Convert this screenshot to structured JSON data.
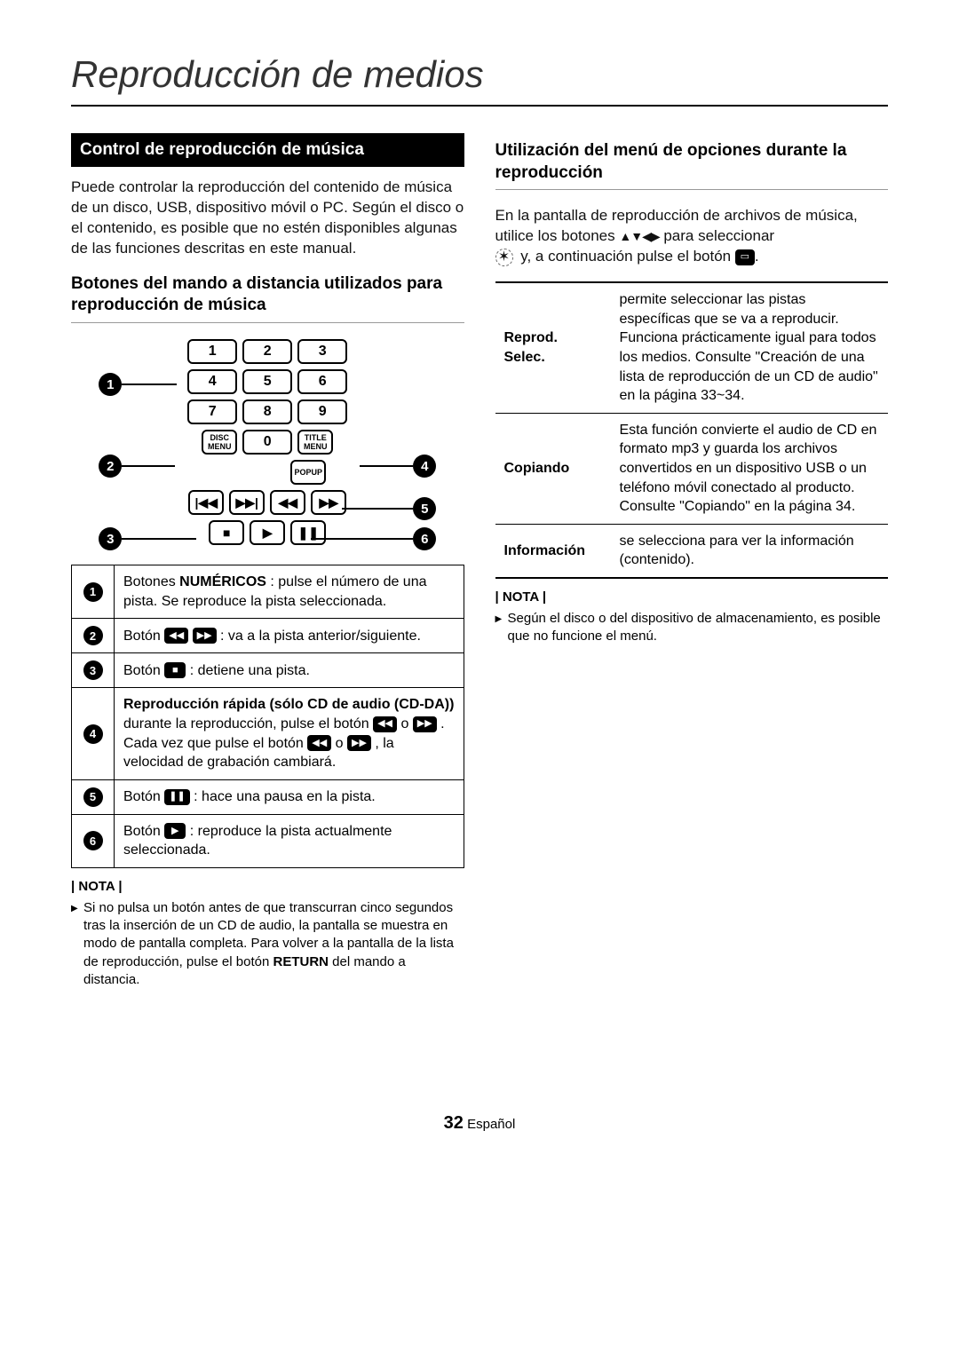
{
  "title": "Reproducción de medios",
  "pageNumber": "32",
  "pageLang": "Español",
  "left": {
    "heading": "Control de reproducción de música",
    "para1": "Puede controlar la reproducción del contenido de música de un disco, USB, dispositivo móvil o PC. Según el disco o el contenido, es posible que no estén disponibles algunas de las funciones descritas en este manual.",
    "subhead": "Botones del mando a distancia utilizados para reproducción de música",
    "remote": {
      "discMenu": "DISC MENU",
      "titleMenu": "TITLE MENU",
      "popup": "POPUP"
    },
    "rows": {
      "r1a": "Botones ",
      "r1bold": "NUMÉRICOS",
      "r1b": " : pulse el número de una pista. Se reproduce la pista seleccionada.",
      "r2a": "Botón ",
      "r2b": " : va a la pista anterior/siguiente.",
      "r3a": "Botón ",
      "r3b": " : detiene una pista.",
      "r4head": "Reproducción rápida (sólo CD de audio (CD-DA))",
      "r4a": "durante la reproducción, pulse el botón ",
      "r4mid": " o ",
      "r4b": ".",
      "r4c": "Cada vez que pulse el botón ",
      "r4d": ", la velocidad de grabación cambiará.",
      "r5a": "Botón ",
      "r5b": " : hace una pausa en la pista.",
      "r6a": "Botón ",
      "r6b": " : reproduce la pista actualmente seleccionada."
    },
    "notaLabel": "| NOTA |",
    "nota1a": "Si no pulsa un botón antes de que transcurran cinco segundos tras la inserción de un CD de audio, la pantalla se muestra en modo de pantalla completa. Para volver a la pantalla de la lista de reproducción, pulse el botón ",
    "nota1bold": "RETURN",
    "nota1b": " del mando a distancia."
  },
  "right": {
    "subhead": "Utilización del menú de opciones durante la reproducción",
    "para1a": "En la pantalla de reproducción de archivos de música, utilice los botones ",
    "arrows": "▲▼◀▶",
    "para1b": " para seleccionar ",
    "para1c": " y, a continuación pulse el botón ",
    "para1d": ".",
    "table": {
      "r1label": "Reprod. Selec.",
      "r1text": "permite seleccionar las pistas específicas que se va a reproducir. Funciona prácticamente igual para todos los medios. Consulte \"Creación de una lista de reproducción de un CD de audio\" en la página 33~34.",
      "r2label": "Copiando",
      "r2text": "Esta función convierte el audio de CD en formato mp3 y guarda los archivos convertidos en un dispositivo USB o un teléfono móvil conectado al producto. Consulte \"Copiando\" en la página 34.",
      "r3label": "Información",
      "r3text": "se selecciona para ver la información (contenido)."
    },
    "notaLabel": "| NOTA |",
    "nota1": "Según el disco o del dispositivo de almacenamiento, es posible que no funcione el menú."
  }
}
